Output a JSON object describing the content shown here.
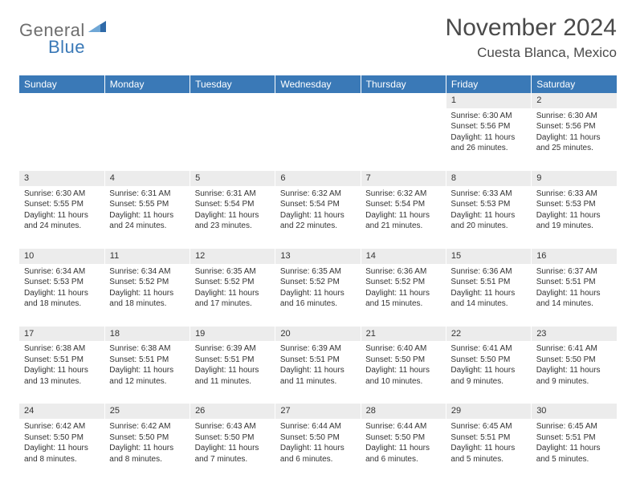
{
  "logo": {
    "text1": "General",
    "text2": "Blue"
  },
  "title": "November 2024",
  "location": "Cuesta Blanca, Mexico",
  "colors": {
    "header_bg": "#3a79b7",
    "header_fg": "#ffffff",
    "daynum_bg": "#ececec",
    "page_bg": "#ffffff",
    "text": "#333333",
    "logo_gray": "#6e6e6e",
    "logo_blue": "#3a79b7"
  },
  "day_headers": [
    "Sunday",
    "Monday",
    "Tuesday",
    "Wednesday",
    "Thursday",
    "Friday",
    "Saturday"
  ],
  "weeks": [
    {
      "nums": [
        "",
        "",
        "",
        "",
        "",
        "1",
        "2"
      ],
      "cells": [
        null,
        null,
        null,
        null,
        null,
        {
          "sunrise": "Sunrise: 6:30 AM",
          "sunset": "Sunset: 5:56 PM",
          "daylight": "Daylight: 11 hours and 26 minutes."
        },
        {
          "sunrise": "Sunrise: 6:30 AM",
          "sunset": "Sunset: 5:56 PM",
          "daylight": "Daylight: 11 hours and 25 minutes."
        }
      ]
    },
    {
      "nums": [
        "3",
        "4",
        "5",
        "6",
        "7",
        "8",
        "9"
      ],
      "cells": [
        {
          "sunrise": "Sunrise: 6:30 AM",
          "sunset": "Sunset: 5:55 PM",
          "daylight": "Daylight: 11 hours and 24 minutes."
        },
        {
          "sunrise": "Sunrise: 6:31 AM",
          "sunset": "Sunset: 5:55 PM",
          "daylight": "Daylight: 11 hours and 24 minutes."
        },
        {
          "sunrise": "Sunrise: 6:31 AM",
          "sunset": "Sunset: 5:54 PM",
          "daylight": "Daylight: 11 hours and 23 minutes."
        },
        {
          "sunrise": "Sunrise: 6:32 AM",
          "sunset": "Sunset: 5:54 PM",
          "daylight": "Daylight: 11 hours and 22 minutes."
        },
        {
          "sunrise": "Sunrise: 6:32 AM",
          "sunset": "Sunset: 5:54 PM",
          "daylight": "Daylight: 11 hours and 21 minutes."
        },
        {
          "sunrise": "Sunrise: 6:33 AM",
          "sunset": "Sunset: 5:53 PM",
          "daylight": "Daylight: 11 hours and 20 minutes."
        },
        {
          "sunrise": "Sunrise: 6:33 AM",
          "sunset": "Sunset: 5:53 PM",
          "daylight": "Daylight: 11 hours and 19 minutes."
        }
      ]
    },
    {
      "nums": [
        "10",
        "11",
        "12",
        "13",
        "14",
        "15",
        "16"
      ],
      "cells": [
        {
          "sunrise": "Sunrise: 6:34 AM",
          "sunset": "Sunset: 5:53 PM",
          "daylight": "Daylight: 11 hours and 18 minutes."
        },
        {
          "sunrise": "Sunrise: 6:34 AM",
          "sunset": "Sunset: 5:52 PM",
          "daylight": "Daylight: 11 hours and 18 minutes."
        },
        {
          "sunrise": "Sunrise: 6:35 AM",
          "sunset": "Sunset: 5:52 PM",
          "daylight": "Daylight: 11 hours and 17 minutes."
        },
        {
          "sunrise": "Sunrise: 6:35 AM",
          "sunset": "Sunset: 5:52 PM",
          "daylight": "Daylight: 11 hours and 16 minutes."
        },
        {
          "sunrise": "Sunrise: 6:36 AM",
          "sunset": "Sunset: 5:52 PM",
          "daylight": "Daylight: 11 hours and 15 minutes."
        },
        {
          "sunrise": "Sunrise: 6:36 AM",
          "sunset": "Sunset: 5:51 PM",
          "daylight": "Daylight: 11 hours and 14 minutes."
        },
        {
          "sunrise": "Sunrise: 6:37 AM",
          "sunset": "Sunset: 5:51 PM",
          "daylight": "Daylight: 11 hours and 14 minutes."
        }
      ]
    },
    {
      "nums": [
        "17",
        "18",
        "19",
        "20",
        "21",
        "22",
        "23"
      ],
      "cells": [
        {
          "sunrise": "Sunrise: 6:38 AM",
          "sunset": "Sunset: 5:51 PM",
          "daylight": "Daylight: 11 hours and 13 minutes."
        },
        {
          "sunrise": "Sunrise: 6:38 AM",
          "sunset": "Sunset: 5:51 PM",
          "daylight": "Daylight: 11 hours and 12 minutes."
        },
        {
          "sunrise": "Sunrise: 6:39 AM",
          "sunset": "Sunset: 5:51 PM",
          "daylight": "Daylight: 11 hours and 11 minutes."
        },
        {
          "sunrise": "Sunrise: 6:39 AM",
          "sunset": "Sunset: 5:51 PM",
          "daylight": "Daylight: 11 hours and 11 minutes."
        },
        {
          "sunrise": "Sunrise: 6:40 AM",
          "sunset": "Sunset: 5:50 PM",
          "daylight": "Daylight: 11 hours and 10 minutes."
        },
        {
          "sunrise": "Sunrise: 6:41 AM",
          "sunset": "Sunset: 5:50 PM",
          "daylight": "Daylight: 11 hours and 9 minutes."
        },
        {
          "sunrise": "Sunrise: 6:41 AM",
          "sunset": "Sunset: 5:50 PM",
          "daylight": "Daylight: 11 hours and 9 minutes."
        }
      ]
    },
    {
      "nums": [
        "24",
        "25",
        "26",
        "27",
        "28",
        "29",
        "30"
      ],
      "cells": [
        {
          "sunrise": "Sunrise: 6:42 AM",
          "sunset": "Sunset: 5:50 PM",
          "daylight": "Daylight: 11 hours and 8 minutes."
        },
        {
          "sunrise": "Sunrise: 6:42 AM",
          "sunset": "Sunset: 5:50 PM",
          "daylight": "Daylight: 11 hours and 8 minutes."
        },
        {
          "sunrise": "Sunrise: 6:43 AM",
          "sunset": "Sunset: 5:50 PM",
          "daylight": "Daylight: 11 hours and 7 minutes."
        },
        {
          "sunrise": "Sunrise: 6:44 AM",
          "sunset": "Sunset: 5:50 PM",
          "daylight": "Daylight: 11 hours and 6 minutes."
        },
        {
          "sunrise": "Sunrise: 6:44 AM",
          "sunset": "Sunset: 5:50 PM",
          "daylight": "Daylight: 11 hours and 6 minutes."
        },
        {
          "sunrise": "Sunrise: 6:45 AM",
          "sunset": "Sunset: 5:51 PM",
          "daylight": "Daylight: 11 hours and 5 minutes."
        },
        {
          "sunrise": "Sunrise: 6:45 AM",
          "sunset": "Sunset: 5:51 PM",
          "daylight": "Daylight: 11 hours and 5 minutes."
        }
      ]
    }
  ]
}
